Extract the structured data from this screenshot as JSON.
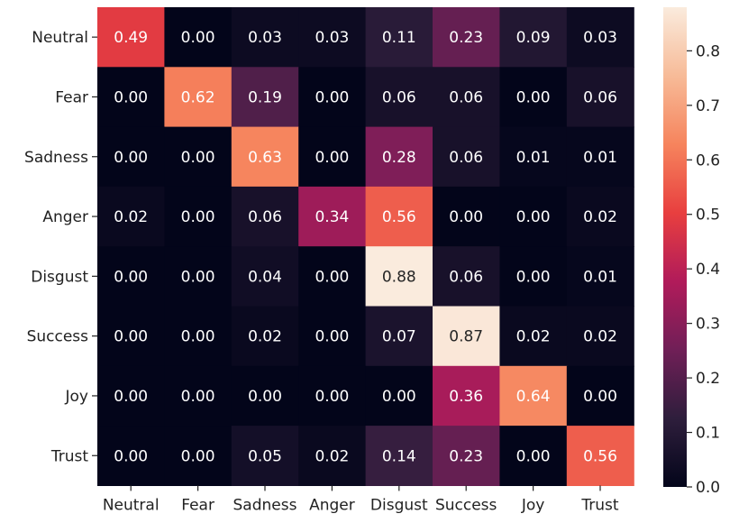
{
  "chart_data": {
    "type": "heatmap",
    "title": "",
    "xlabel": "",
    "ylabel": "",
    "row_labels": [
      "Neutral",
      "Fear",
      "Sadness",
      "Anger",
      "Disgust",
      "Success",
      "Joy",
      "Trust"
    ],
    "col_labels": [
      "Neutral",
      "Fear",
      "Sadness",
      "Anger",
      "Disgust",
      "Success",
      "Joy",
      "Trust"
    ],
    "values": [
      [
        0.49,
        0.0,
        0.03,
        0.03,
        0.11,
        0.23,
        0.09,
        0.03
      ],
      [
        0.0,
        0.62,
        0.19,
        0.0,
        0.06,
        0.06,
        0.0,
        0.06
      ],
      [
        0.0,
        0.0,
        0.63,
        0.0,
        0.28,
        0.06,
        0.01,
        0.01
      ],
      [
        0.02,
        0.0,
        0.06,
        0.34,
        0.56,
        0.0,
        0.0,
        0.02
      ],
      [
        0.0,
        0.0,
        0.04,
        0.0,
        0.88,
        0.06,
        0.0,
        0.01
      ],
      [
        0.0,
        0.0,
        0.02,
        0.0,
        0.07,
        0.87,
        0.02,
        0.02
      ],
      [
        0.0,
        0.0,
        0.0,
        0.0,
        0.0,
        0.36,
        0.64,
        0.0
      ],
      [
        0.0,
        0.0,
        0.05,
        0.02,
        0.14,
        0.23,
        0.0,
        0.56
      ]
    ],
    "value_format": "2-decimal",
    "colorbar": {
      "min": 0.0,
      "max": 0.88,
      "ticks": [
        0.0,
        0.1,
        0.2,
        0.3,
        0.4,
        0.5,
        0.6,
        0.7,
        0.8
      ],
      "tick_labels": [
        "0.0",
        "0.1",
        "0.2",
        "0.3",
        "0.4",
        "0.5",
        "0.6",
        "0.7",
        "0.8"
      ]
    },
    "colormap": "rocket",
    "colormap_stops": [
      "#03051a",
      "#2e1e3c",
      "#701f57",
      "#b11b5a",
      "#e83f3f",
      "#f6845d",
      "#f7bb98",
      "#faebdd"
    ],
    "annotation_colors": {
      "light": "#ffffff",
      "dark": "#262626"
    }
  }
}
